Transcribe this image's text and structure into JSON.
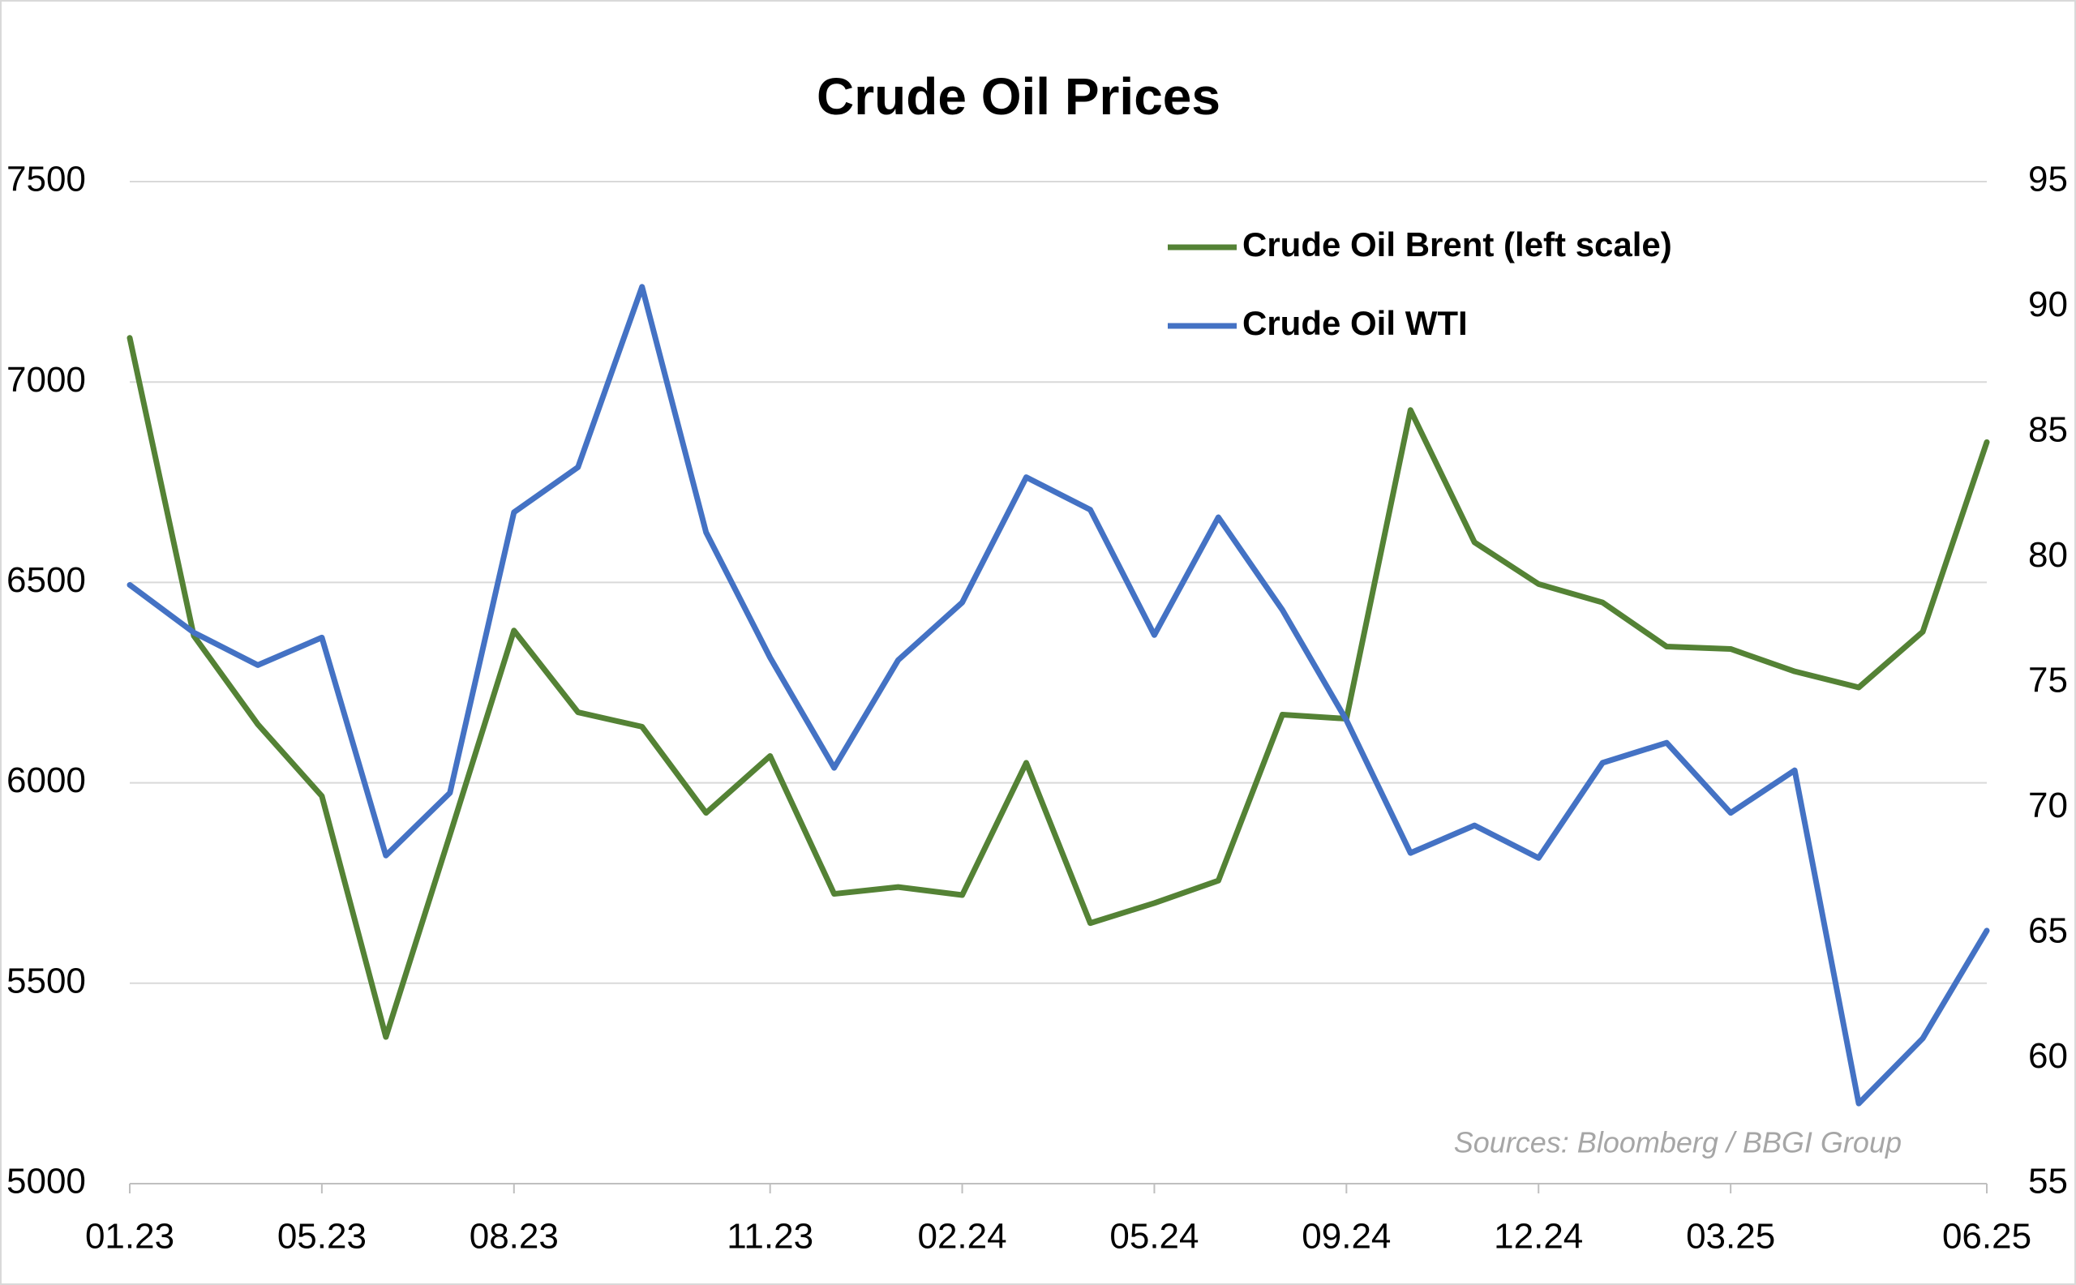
{
  "chart_data": {
    "type": "line",
    "title": "Crude Oil Prices",
    "categories": [
      "01.23",
      null,
      null,
      "05.23",
      null,
      null,
      "08.23",
      null,
      null,
      null,
      "11.23",
      null,
      null,
      "02.24",
      null,
      null,
      "05.24",
      null,
      null,
      "09.24",
      null,
      null,
      "12.24",
      null,
      null,
      "03.25",
      null,
      null,
      null,
      "06.25"
    ],
    "series": [
      {
        "name": "Crude Oil Brent (left scale)",
        "color": "#548235",
        "axis": "y",
        "values": [
          7110,
          6367,
          6146,
          5967,
          5366,
          5870,
          6380,
          6176,
          6140,
          5925,
          6067,
          5723,
          5740,
          5720,
          6050,
          5650,
          5700,
          5756,
          6170,
          6160,
          6930,
          6600,
          6496,
          6450,
          6340,
          6334,
          6278,
          6238,
          6377,
          6850
        ]
      },
      {
        "name": "Crude Oil WTI",
        "color": "#4472c4",
        "axis": "y2",
        "values": [
          78.9,
          77.0,
          75.7,
          76.8,
          68.1,
          70.6,
          81.8,
          83.6,
          90.8,
          81.0,
          76.0,
          71.6,
          75.9,
          78.2,
          83.2,
          81.9,
          76.9,
          81.6,
          77.9,
          73.5,
          68.2,
          69.3,
          68.0,
          71.8,
          72.6,
          69.8,
          71.5,
          58.2,
          60.8,
          65.1
        ]
      }
    ],
    "ylim": [
      5000,
      7500
    ],
    "yticks": [
      5000,
      5500,
      6000,
      6500,
      7000,
      7500
    ],
    "y2lim": [
      55,
      95
    ],
    "y2ticks": [
      55,
      60,
      65,
      70,
      75,
      80,
      85,
      90,
      95
    ],
    "grid": true,
    "legend": "top-right",
    "annotation": "Sources: Bloomberg / BBGI Group"
  }
}
